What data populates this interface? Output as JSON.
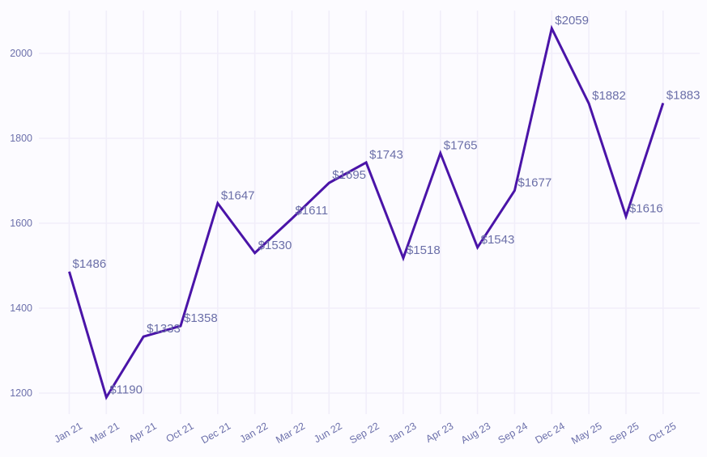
{
  "chart_data": {
    "type": "line",
    "title": "",
    "xlabel": "",
    "ylabel": "",
    "categories": [
      "Jan 21",
      "Mar 21",
      "Apr 21",
      "Oct 21",
      "Dec 21",
      "Jan 22",
      "Mar 22",
      "Jun 22",
      "Sep 22",
      "Jan 23",
      "Apr 23",
      "Aug 23",
      "Sep 24",
      "Dec 24",
      "May 25",
      "Sep 25",
      "Oct 25"
    ],
    "values": [
      1486,
      1190,
      1333,
      1358,
      1647,
      1530,
      1611,
      1695,
      1743,
      1518,
      1765,
      1543,
      1677,
      2059,
      1882,
      1616,
      1883
    ],
    "point_labels": [
      "$1486",
      "$1190",
      "$1333",
      "$1358",
      "$1647",
      "$1530",
      "$1611",
      "$1695",
      "$1743",
      "$1518",
      "$1765",
      "$1543",
      "$1677",
      "$2059",
      "$1882",
      "$1616",
      "$1883"
    ],
    "y_ticks": [
      1200,
      1400,
      1600,
      1800,
      2000
    ],
    "ylim": [
      1160,
      2100
    ],
    "grid": true,
    "legend": "none",
    "colors": {
      "line": "#4a14a8",
      "point_label_text": "#6b6fa8",
      "axis_tick_text": "#6c70ab",
      "gridline": "#f1eefa",
      "background": "#fcfbff"
    }
  }
}
